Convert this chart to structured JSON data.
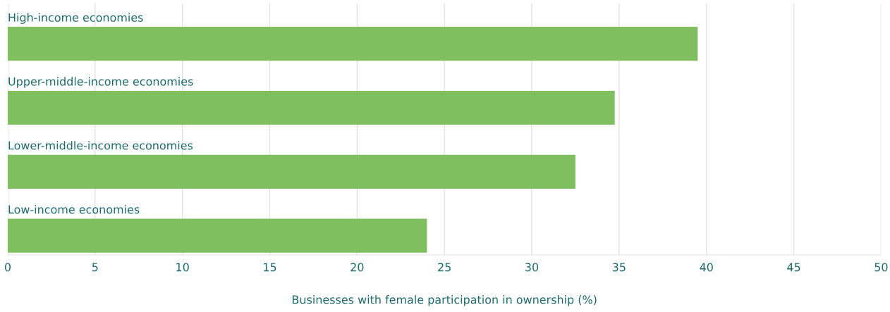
{
  "chart_data": {
    "type": "bar",
    "orientation": "horizontal",
    "categories": [
      "High-income economies",
      "Upper-middle-income economies",
      "Lower-middle-income economies",
      "Low-income economies"
    ],
    "values": [
      39.5,
      34.75,
      32.5,
      24.0
    ],
    "color": "#7fbf5f",
    "xlabel": "Businesses with female participation in ownership (%)",
    "xlim": [
      0,
      50
    ],
    "xticks": [
      0,
      5,
      10,
      15,
      20,
      25,
      30,
      35,
      40,
      45,
      50
    ],
    "grid": "x",
    "legend": false
  }
}
